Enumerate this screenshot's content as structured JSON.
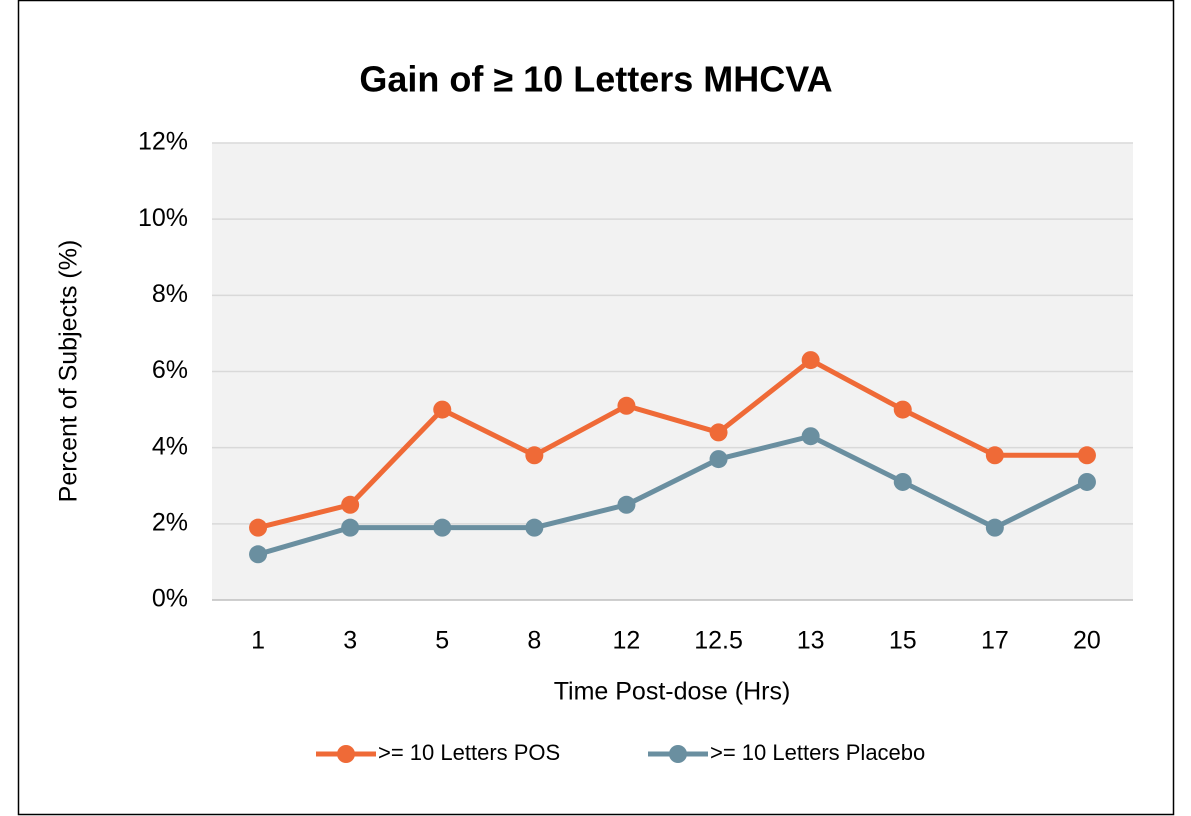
{
  "chart_data": {
    "type": "line",
    "title": "Gain of ≥ 10 Letters MHCVA",
    "x_label": "Time Post-dose (Hrs)",
    "y_label": "Percent of Subjects (%)",
    "categories": [
      "1",
      "3",
      "5",
      "8",
      "12",
      "12.5",
      "13",
      "15",
      "17",
      "20"
    ],
    "series": [
      {
        "name": ">= 10 Letters POS",
        "color": "#ef6a37",
        "values": [
          1.9,
          2.5,
          5.0,
          3.8,
          5.1,
          4.4,
          6.3,
          5.0,
          3.8,
          3.8
        ]
      },
      {
        "name": ">= 10 Letters Placebo",
        "color": "#6a8fa0",
        "values": [
          1.2,
          1.9,
          1.9,
          1.9,
          2.5,
          3.7,
          4.3,
          3.1,
          1.9,
          3.1
        ]
      }
    ],
    "ylim": [
      0,
      12
    ],
    "yticks": [
      {
        "value": 0,
        "label": "0%"
      },
      {
        "value": 2,
        "label": "2%"
      },
      {
        "value": 4,
        "label": "4%"
      },
      {
        "value": 6,
        "label": "6%"
      },
      {
        "value": 8,
        "label": "8%"
      },
      {
        "value": 10,
        "label": "10%"
      },
      {
        "value": 12,
        "label": "12%"
      }
    ],
    "grid": true,
    "legend": "bottom"
  }
}
